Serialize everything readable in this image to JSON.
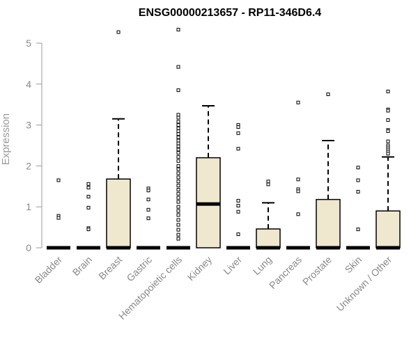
{
  "colors": {
    "box_fill": "#efe8cf",
    "stroke": "#000000",
    "axis": "#999999",
    "tick_text": "#888888"
  },
  "chart_data": {
    "type": "boxplot",
    "title": "ENSG00000213657 - RP11-346D6.4",
    "ylabel": "Expression",
    "xlabel": "",
    "ylim": [
      0,
      5.5
    ],
    "yticks": [
      0,
      1,
      2,
      3,
      4,
      5
    ],
    "grid": false,
    "categories": [
      "Bladder",
      "Brain",
      "Breast",
      "Gastric",
      "Hematopoietic cells",
      "Kidney",
      "Liver",
      "Lung",
      "Pancreas",
      "Prostate",
      "Skin",
      "Unknown / Other"
    ],
    "boxes": [
      {
        "name": "Bladder",
        "min": 0,
        "q1": 0,
        "median": 0,
        "q3": 0,
        "max": 0,
        "outliers": [
          1.65,
          0.78,
          0.73
        ]
      },
      {
        "name": "Brain",
        "min": 0,
        "q1": 0,
        "median": 0,
        "q3": 0,
        "max": 0,
        "outliers": [
          1.56,
          1.47,
          1.25,
          0.98,
          0.48,
          0.45
        ]
      },
      {
        "name": "Breast",
        "min": 0,
        "q1": 0,
        "median": 0,
        "q3": 1.68,
        "max": 3.15,
        "outliers": [
          5.27
        ]
      },
      {
        "name": "Gastric",
        "min": 0,
        "q1": 0,
        "median": 0,
        "q3": 0,
        "max": 0,
        "outliers": [
          1.45,
          1.4,
          1.18,
          0.93,
          0.72
        ]
      },
      {
        "name": "Hematopoietic cells",
        "min": 0,
        "q1": 0,
        "median": 0,
        "q3": 0,
        "max": 0,
        "outliers": [
          5.33,
          4.42,
          3.85,
          3.25,
          3.18,
          3.08,
          3.0,
          2.92,
          2.85,
          2.78,
          2.7,
          2.62,
          2.55,
          2.48,
          2.4,
          2.32,
          2.22,
          2.12,
          2.0,
          1.92,
          1.82,
          1.72,
          1.62,
          1.52,
          1.42,
          1.32,
          1.22,
          1.12,
          1.0,
          0.9,
          0.8,
          0.68,
          0.56,
          0.44,
          0.32,
          0.22
        ]
      },
      {
        "name": "Kidney",
        "min": 0,
        "q1": 0,
        "median": 1.07,
        "q3": 2.2,
        "max": 3.47,
        "outliers": []
      },
      {
        "name": "Liver",
        "min": 0,
        "q1": 0,
        "median": 0,
        "q3": 0,
        "max": 0,
        "outliers": [
          3.0,
          2.95,
          2.8,
          2.42,
          1.15,
          1.03,
          0.88,
          0.33
        ]
      },
      {
        "name": "Lung",
        "min": 0,
        "q1": 0,
        "median": 0,
        "q3": 0.46,
        "max": 1.1,
        "outliers": [
          1.62,
          1.55
        ]
      },
      {
        "name": "Pancreas",
        "min": 0,
        "q1": 0,
        "median": 0,
        "q3": 0,
        "max": 0,
        "outliers": [
          3.55,
          1.67,
          1.43,
          1.38,
          0.82
        ]
      },
      {
        "name": "Prostate",
        "min": 0,
        "q1": 0,
        "median": 0,
        "q3": 1.18,
        "max": 2.62,
        "outliers": [
          3.75
        ]
      },
      {
        "name": "Skin",
        "min": 0,
        "q1": 0,
        "median": 0,
        "q3": 0,
        "max": 0,
        "outliers": [
          1.96,
          1.65,
          1.37,
          0.45
        ]
      },
      {
        "name": "Unknown / Other",
        "min": 0,
        "q1": 0,
        "median": 0,
        "q3": 0.9,
        "max": 2.22,
        "outliers": [
          3.82,
          3.38,
          3.35,
          3.12,
          2.88,
          2.85,
          2.6,
          2.5,
          2.45,
          2.4,
          2.35,
          2.3
        ]
      }
    ]
  }
}
